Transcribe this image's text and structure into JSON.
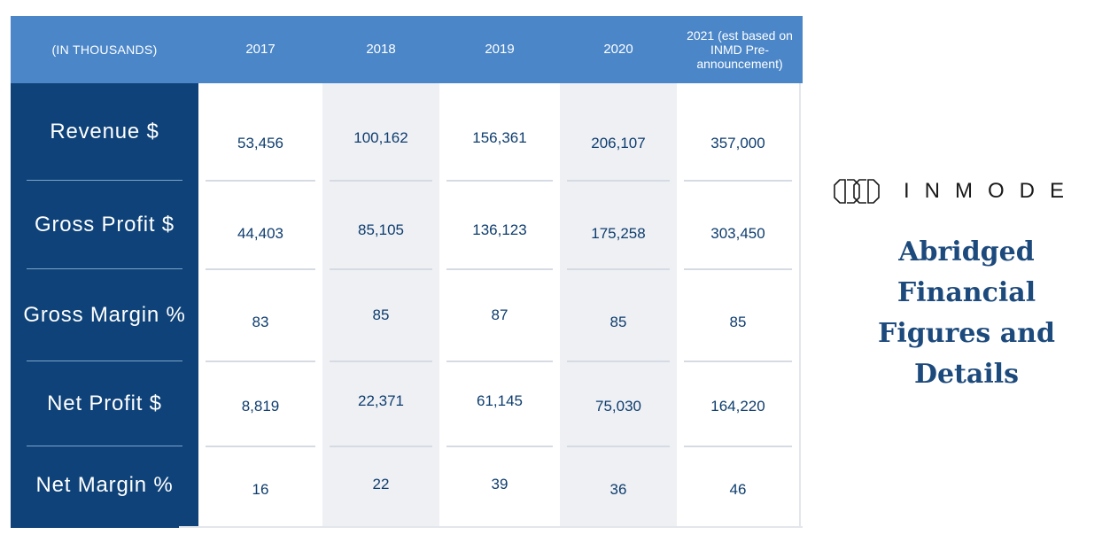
{
  "table": {
    "header": {
      "row_label": "(IN THOUSANDS)",
      "years": [
        "2017",
        "2018",
        "2019",
        "2020",
        "2021 (est based on INMD Pre-announcement)"
      ]
    },
    "rows": [
      {
        "label": "Revenue $",
        "values": [
          "53,456",
          "100,162",
          "156,361",
          "206,107",
          "357,000"
        ]
      },
      {
        "label": "Gross Profit $",
        "values": [
          "44,403",
          "85,105",
          "136,123",
          "175,258",
          "303,450"
        ]
      },
      {
        "label": "Gross Margin %",
        "values": [
          "83",
          "85",
          "87",
          "85",
          "85"
        ]
      },
      {
        "label": "Net Profit $",
        "values": [
          "8,819",
          "22,371",
          "61,145",
          "75,030",
          "164,220"
        ]
      },
      {
        "label": "Net Margin %",
        "values": [
          "16",
          "22",
          "39",
          "36",
          "46"
        ]
      }
    ]
  },
  "brand": {
    "logo_icon": "inmode-logo-mark-icon",
    "wordmark": "INMODE"
  },
  "title": {
    "line1": "Abridged Financial",
    "line2": "Figures and Details"
  },
  "colors": {
    "header_bg": "#4a86c8",
    "label_column_bg": "#0e4279",
    "value_text": "#0e3d6e",
    "alt_column_bg": "#eef0f4",
    "title_text": "#1d4a7c"
  }
}
